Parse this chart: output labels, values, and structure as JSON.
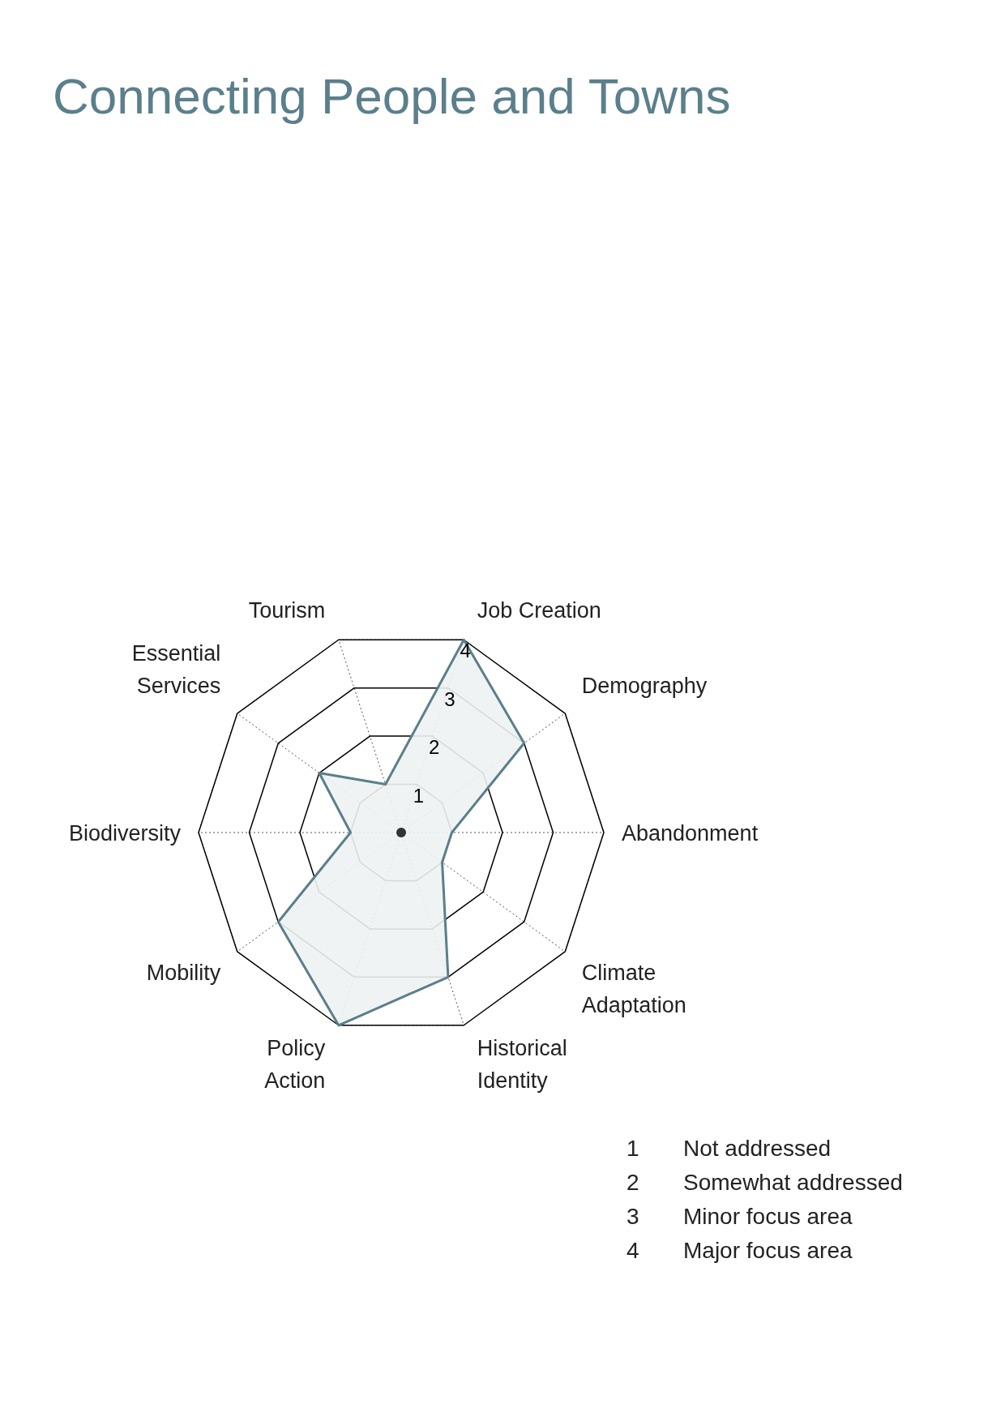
{
  "chart_data": {
    "type": "radar",
    "title": "Connecting People and Towns",
    "categories": [
      "Job Creation",
      "Demography",
      "Abandonment",
      "Climate Adaptation",
      "Historical Identity",
      "Policy Action",
      "Mobility",
      "Biodiversity",
      "Essential Services",
      "Tourism"
    ],
    "series": [
      {
        "color": "#5a7f8a",
        "values": [
          4,
          3,
          1,
          1,
          3,
          4,
          3,
          1,
          2,
          1
        ]
      }
    ],
    "ylim": [
      0,
      4
    ],
    "yticks": [
      1,
      2,
      3,
      4
    ],
    "grid": true,
    "annotations": [
      "1 Not addressed",
      "2 Somewhat addressed",
      "3 Minor focus area",
      "4 Major focus area"
    ]
  }
}
